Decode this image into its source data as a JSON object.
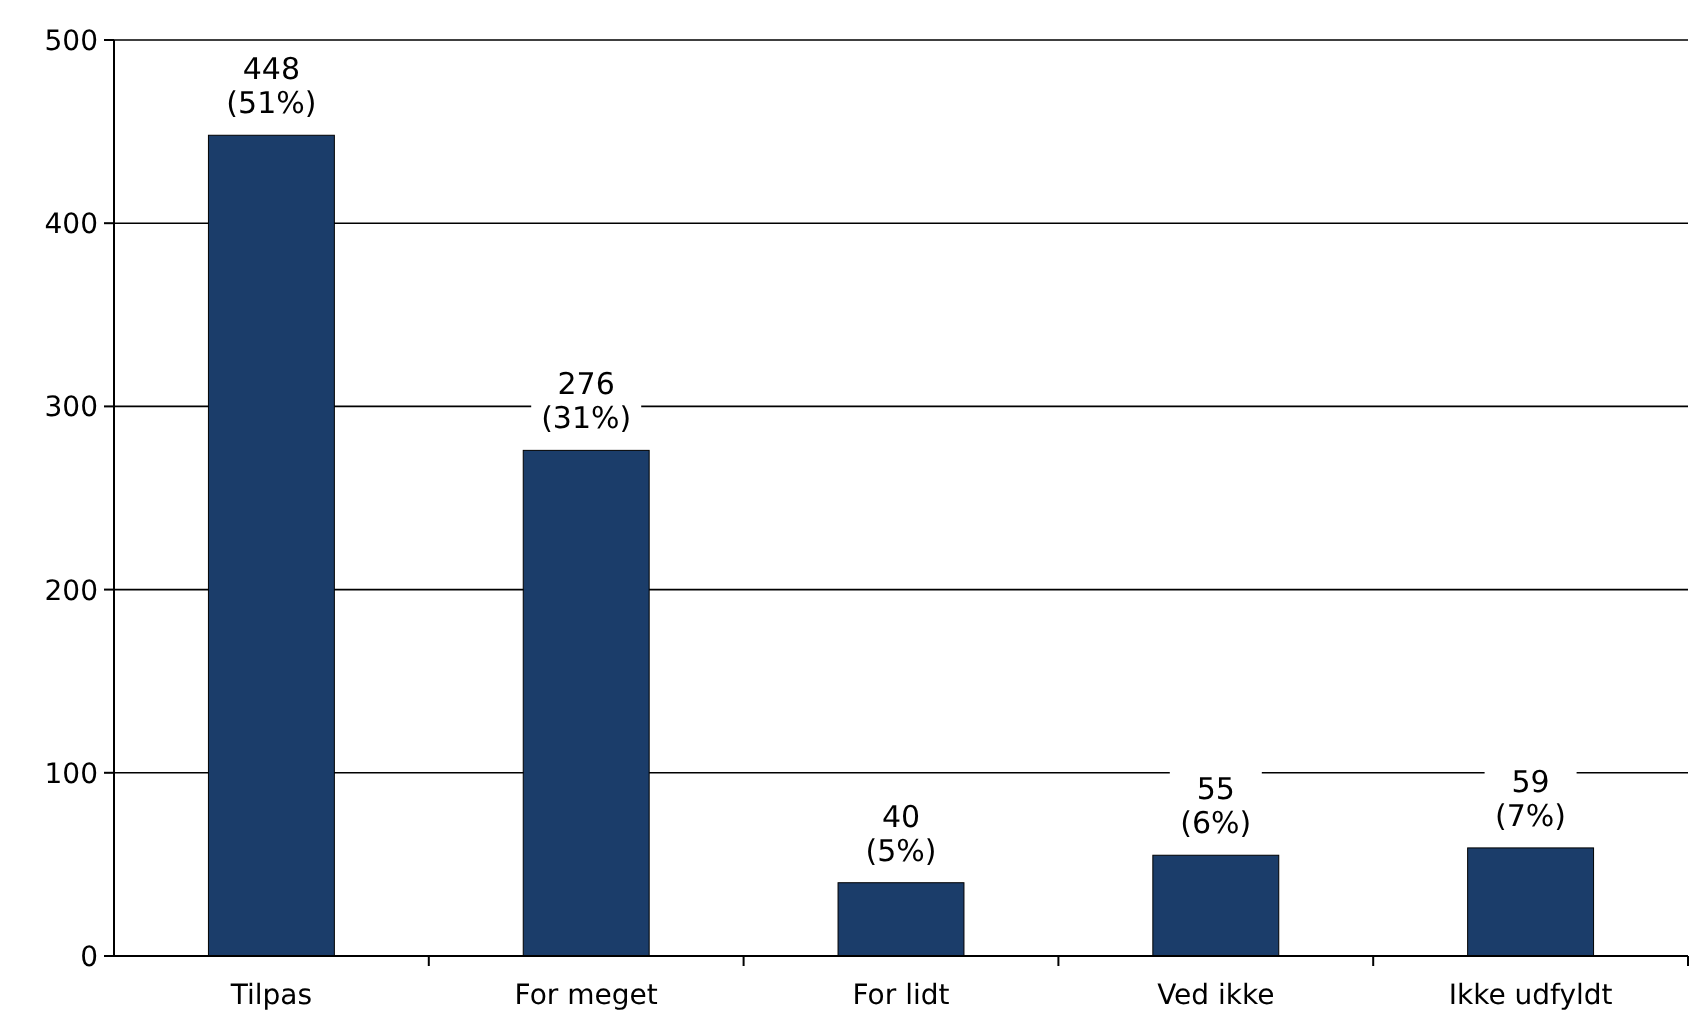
{
  "chart_data": {
    "type": "bar",
    "categories": [
      "Tilpas",
      "For meget",
      "For lidt",
      "Ved ikke",
      "Ikke udfyldt"
    ],
    "values": [
      448,
      276,
      40,
      55,
      59
    ],
    "value_labels": [
      "448 (51%)",
      "276 (31%)",
      "40 (5%)",
      "55 (6%)",
      "59 (7%)"
    ],
    "color": "#1b3d6a",
    "ylim": [
      0,
      500
    ],
    "yticks": [
      0,
      100,
      200,
      300,
      400,
      500
    ],
    "grid": "y"
  }
}
